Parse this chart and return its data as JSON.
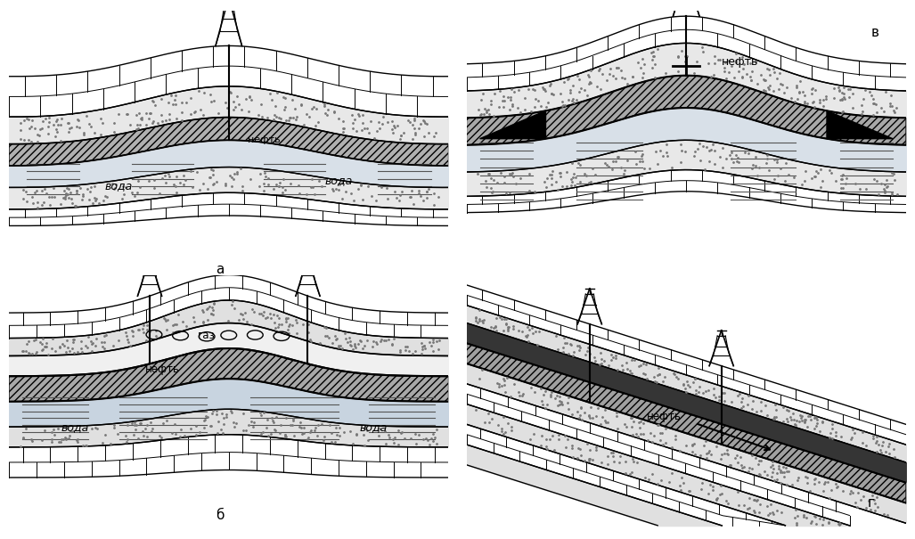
{
  "title": "",
  "bg_color": "#ffffff",
  "labels": {
    "a": "а",
    "b": "б",
    "v": "в",
    "g": "г"
  },
  "texts": {
    "neft": "нефть",
    "voda": "вода",
    "gaz": "газ"
  },
  "line_color": "#000000",
  "hatch_oil": "////",
  "fill_oil": "#c8c8c8",
  "fill_water": "#e8e8e8",
  "fill_rock": "#f0f0f0"
}
